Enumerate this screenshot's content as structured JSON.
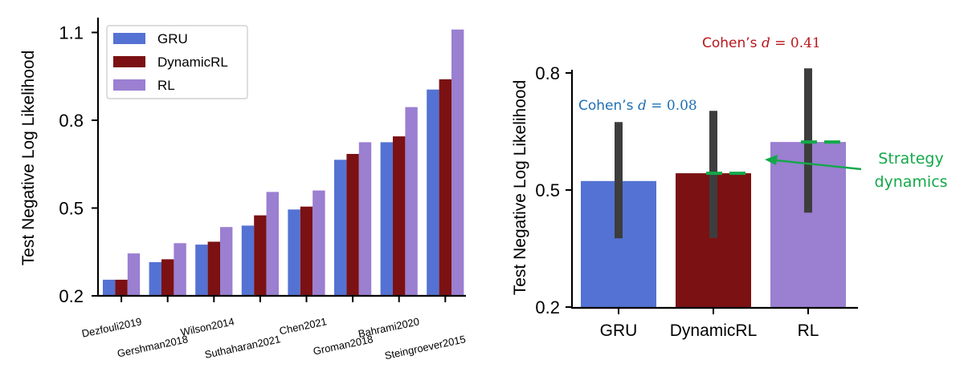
{
  "chart_data": [
    {
      "type": "bar",
      "ylabel": "Test Negative Log Likelihood",
      "ylim": [
        0.2,
        1.15
      ],
      "yticks": [
        "0.2",
        "0.5",
        "0.8",
        "1.1"
      ],
      "categories": [
        "Dezfouli2019",
        "Gershman2018",
        "Wilson2014",
        "Suthaharan2021",
        "Chen2021",
        "Groman2018",
        "Bahrami2020",
        "Steingroever2015"
      ],
      "series": [
        {
          "name": "GRU",
          "color": "#5472d3",
          "values": [
            0.255,
            0.315,
            0.375,
            0.44,
            0.495,
            0.665,
            0.725,
            0.905
          ]
        },
        {
          "name": "DynamicRL",
          "color": "#7b1113",
          "values": [
            0.255,
            0.325,
            0.385,
            0.475,
            0.505,
            0.685,
            0.745,
            0.94
          ]
        },
        {
          "name": "RL",
          "color": "#9b7fd1",
          "values": [
            0.345,
            0.38,
            0.435,
            0.555,
            0.56,
            0.725,
            0.845,
            1.11
          ]
        }
      ],
      "legend": {
        "position": "top-left",
        "entries": [
          "GRU",
          "DynamicRL",
          "RL"
        ]
      },
      "grid": false
    },
    {
      "type": "bar",
      "ylabel": "Test Negative Log Likelihood",
      "ylim": [
        0.2,
        0.8
      ],
      "yticks": [
        "0.2",
        "0.5",
        "0.8"
      ],
      "categories": [
        "GRU",
        "DynamicRL",
        "RL"
      ],
      "colors": [
        "#5472d3",
        "#7b1113",
        "#9b7fd1"
      ],
      "values": [
        0.523,
        0.543,
        0.623
      ],
      "error_low": [
        0.376,
        0.377,
        0.442
      ],
      "error_high": [
        0.674,
        0.703,
        0.812
      ],
      "dashes": [
        {
          "at_category": "DynamicRL",
          "y": 0.543,
          "color": "#14a84a"
        },
        {
          "at_category": "RL",
          "y": 0.623,
          "color": "#14a84a"
        }
      ],
      "annotations": [
        {
          "prefix": "Cohen’s ",
          "var": "d",
          "suffix": " = 0.08",
          "color": "#1f6fb2"
        },
        {
          "prefix": "Cohen’s ",
          "var": "d",
          "suffix": " = 0.41",
          "color": "#b8161c"
        },
        {
          "lines": [
            "Strategy",
            "dynamics"
          ],
          "color": "#14a84a"
        }
      ],
      "grid": false
    }
  ]
}
